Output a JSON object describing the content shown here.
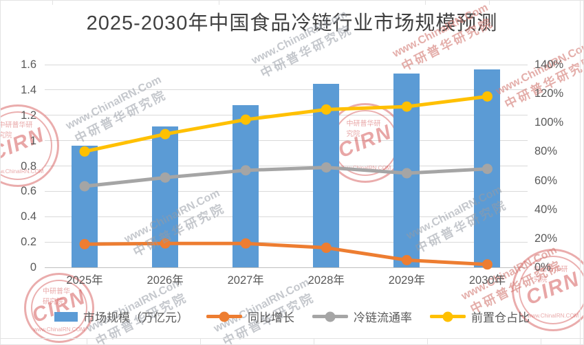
{
  "title": "2025-2030年中国食品冷链行业市场规模预测",
  "chart_data": {
    "type": "bar",
    "subtype": "combo bar + line, dual axis",
    "categories": [
      "2025年",
      "2026年",
      "2027年",
      "2028年",
      "2029年",
      "2030年"
    ],
    "series": [
      {
        "name": "市场规模（万亿元）",
        "chart": "bar",
        "axis": "left",
        "color": "#5B9BD5",
        "values": [
          0.96,
          1.11,
          1.28,
          1.45,
          1.53,
          1.56
        ]
      },
      {
        "name": "同比增长",
        "chart": "line",
        "axis": "right",
        "color": "#ED7D31",
        "unit": "%",
        "values": [
          16,
          16.5,
          16.5,
          13.5,
          5,
          2
        ]
      },
      {
        "name": "冷链流通率",
        "chart": "line",
        "axis": "right",
        "color": "#A5A5A5",
        "unit": "%",
        "values": [
          56,
          62,
          67,
          69,
          65,
          68
        ]
      },
      {
        "name": "前置仓占比",
        "chart": "line",
        "axis": "right",
        "color": "#FFC000",
        "unit": "%",
        "values": [
          80,
          92,
          102,
          109,
          111,
          118
        ]
      }
    ],
    "left_axis": {
      "min": 0,
      "max": 1.6,
      "tick_labels": [
        "0",
        "0.2",
        "0.4",
        "0.6",
        "0.8",
        "1",
        "1.2",
        "1.4",
        "1.6"
      ]
    },
    "right_axis": {
      "min": 0,
      "max": 140,
      "tick_labels": [
        "0%",
        "20%",
        "40%",
        "60%",
        "80%",
        "100%",
        "120%",
        "140%"
      ]
    },
    "grid": true,
    "legend_position": "bottom"
  },
  "watermark": {
    "text_line1": "www.ChinaIRN.Com",
    "text_line2": "中研普华研究院",
    "stamp_abbr": "CIRN",
    "stamp_top": "中研普华研究院",
    "stamp_bottom": "www.ChinaIRN.COM"
  },
  "colors": {
    "bar_blue": "#5B9BD5",
    "line_orange": "#ED7D31",
    "line_gray": "#A5A5A5",
    "line_yellow": "#FFC000",
    "gridline": "#D9D9D9",
    "axis_text": "#595959",
    "title_text": "#404040",
    "watermark_red": "#CC3A3A"
  }
}
